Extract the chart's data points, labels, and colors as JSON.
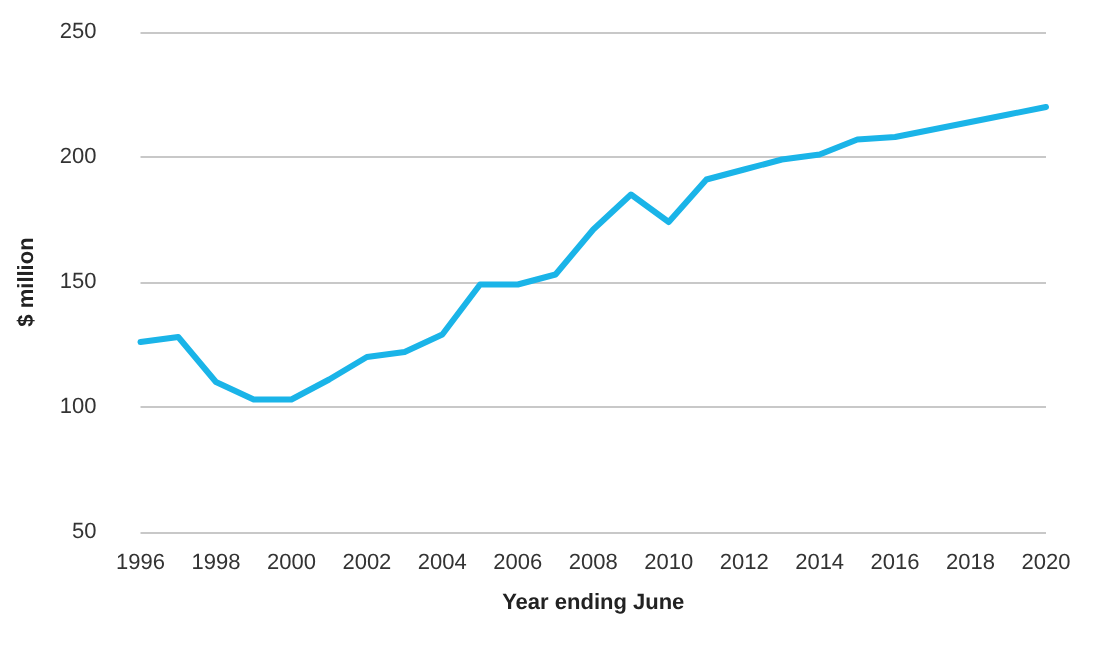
{
  "chart_data": {
    "type": "line",
    "xlabel": "Year ending June",
    "ylabel": "$ million",
    "x": [
      1996,
      1997,
      1998,
      1999,
      2000,
      2001,
      2002,
      2003,
      2004,
      2005,
      2006,
      2007,
      2008,
      2009,
      2010,
      2011,
      2012,
      2013,
      2014,
      2015,
      2016,
      2017,
      2018,
      2019,
      2020
    ],
    "series": [
      {
        "color": "#1ab4e8",
        "values": [
          126,
          128,
          110,
          103,
          103,
          111,
          120,
          122,
          129,
          149,
          149,
          153,
          171,
          185,
          174,
          191,
          195,
          199,
          201,
          207,
          208,
          211,
          214,
          217,
          220
        ]
      }
    ],
    "xlim": [
      1996,
      2020
    ],
    "xticks": [
      1996,
      1998,
      2000,
      2002,
      2004,
      2006,
      2008,
      2010,
      2012,
      2014,
      2016,
      2018,
      2020
    ],
    "ylim": [
      50,
      250
    ],
    "yticks": [
      50,
      100,
      150,
      200,
      250
    ],
    "grid": "y",
    "marker": "none",
    "line_style": "solid"
  }
}
